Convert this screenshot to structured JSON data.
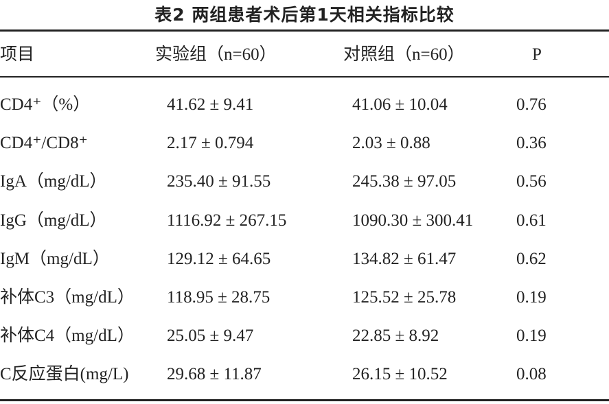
{
  "title": "表2  两组患者术后第1天相关指标比较",
  "table": {
    "header": [
      "项目",
      "实验组（n=60）",
      "对照组（n=60）",
      "P"
    ],
    "rows": [
      [
        "CD4⁺（%）",
        "41.62 ± 9.41",
        "41.06 ± 10.04",
        "0.76"
      ],
      [
        "CD4⁺/CD8⁺",
        "2.17 ± 0.794",
        "2.03 ± 0.88",
        "0.36"
      ],
      [
        "IgA（mg/dL）",
        "235.40 ± 91.55",
        "245.38 ± 97.05",
        "0.56"
      ],
      [
        "IgG（mg/dL）",
        "1116.92 ± 267.15",
        "1090.30 ± 300.41",
        "0.61"
      ],
      [
        "IgM（mg/dL）",
        "129.12 ± 64.65",
        "134.82 ± 61.47",
        "0.62"
      ],
      [
        "补体C3（mg/dL）",
        "118.95 ± 28.75",
        "125.52 ± 25.78",
        "0.19"
      ],
      [
        "补体C4（mg/dL）",
        "25.05 ± 9.47",
        "22.85 ± 8.92",
        "0.19"
      ],
      [
        "C反应蛋白(mg/L)",
        "29.68 ± 11.87",
        "26.15 ± 10.52",
        "0.08"
      ]
    ]
  }
}
